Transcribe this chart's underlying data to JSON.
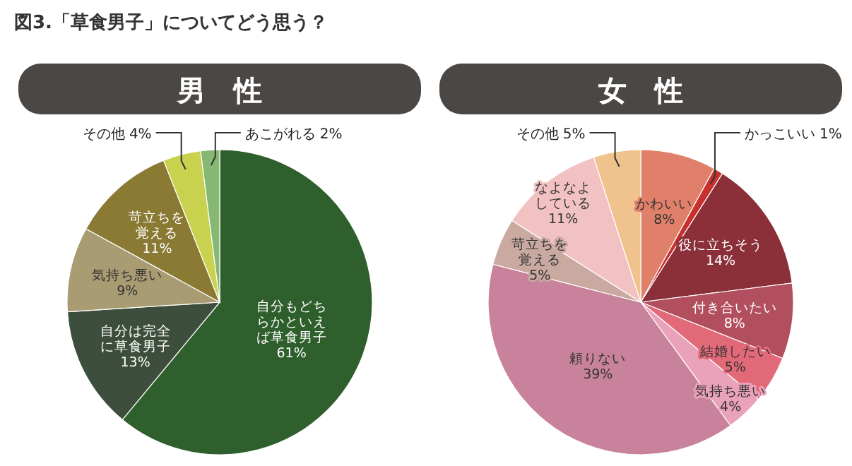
{
  "chart_data": [
    {
      "type": "pie",
      "title": "図3.「草食男子」についてどう思う？",
      "subtitle": "男　性",
      "categories": [
        "自分もどちらかといえば草食男子",
        "自分は完全に草食男子",
        "気持ち悪い",
        "苛立ちを覚える",
        "その他",
        "あこがれる"
      ],
      "values": [
        61,
        13,
        9,
        11,
        4,
        2
      ],
      "value_labels": [
        "61%",
        "13%",
        "9%",
        "11%",
        "4%",
        "2%"
      ],
      "colors": [
        "#2f5f2c",
        "#3d4f3c",
        "#a99b72",
        "#8a7a33",
        "#c8d24e",
        "#86b874"
      ]
    },
    {
      "type": "pie",
      "subtitle": "女　性",
      "categories": [
        "かわいい",
        "かっこいい",
        "役に立ちそう",
        "付き合いたい",
        "結婚したい",
        "気持ち悪い",
        "頼りない",
        "苛立ちを覚える",
        "なよなよしている",
        "その他"
      ],
      "values": [
        8,
        1,
        14,
        8,
        5,
        4,
        39,
        5,
        11,
        5
      ],
      "value_labels": [
        "8%",
        "1%",
        "14%",
        "8%",
        "5%",
        "4%",
        "39%",
        "5%",
        "11%",
        "5%"
      ],
      "colors": [
        "#e0806a",
        "#c8302e",
        "#8b3039",
        "#b24f5e",
        "#e26a78",
        "#eaa2bb",
        "#c8829b",
        "#c9a9a0",
        "#f2c2c2",
        "#f0c28e"
      ]
    }
  ]
}
